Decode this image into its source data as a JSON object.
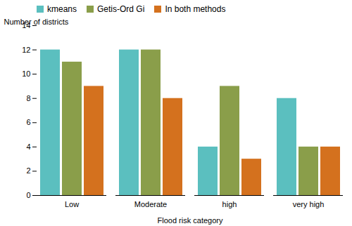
{
  "chart_data": {
    "type": "bar",
    "categories": [
      "Low",
      "Moderate",
      "high",
      "very high"
    ],
    "series": [
      {
        "name": "kmeans",
        "color": "#5bbfbf",
        "values": [
          12,
          12,
          4,
          8
        ]
      },
      {
        "name": "Getis-Ord Gi",
        "color": "#8a9e4a",
        "values": [
          11,
          12,
          9,
          4
        ]
      },
      {
        "name": "In both methods",
        "color": "#d4711e",
        "values": [
          9,
          8,
          3,
          4
        ]
      }
    ],
    "xlabel": "Flood risk category",
    "ylabel": "Number of districts",
    "ylim": [
      0,
      14
    ],
    "yticks": [
      0,
      2,
      4,
      6,
      8,
      10,
      12,
      14
    ],
    "grid": false,
    "legend": "upper left"
  }
}
